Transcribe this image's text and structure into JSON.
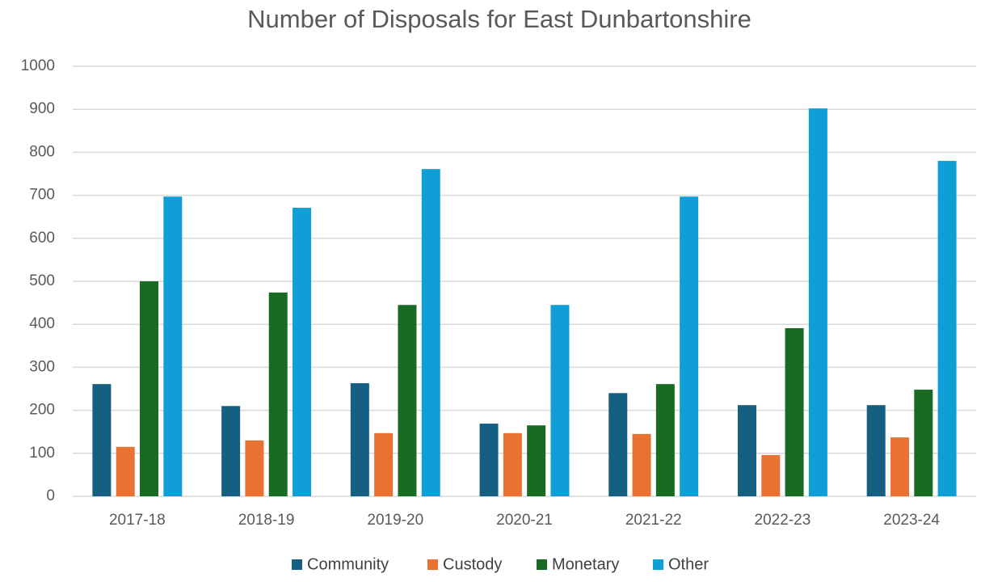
{
  "chart_data": {
    "type": "bar",
    "title": "Number of Disposals for East Dunbartonshire",
    "categories": [
      "2017-18",
      "2018-19",
      "2019-20",
      "2020-21",
      "2021-22",
      "2022-23",
      "2023-24"
    ],
    "series": [
      {
        "name": "Community",
        "color": "#156082",
        "values": [
          261,
          210,
          263,
          169,
          240,
          212,
          212
        ]
      },
      {
        "name": "Custody",
        "color": "#e97132",
        "values": [
          115,
          130,
          147,
          147,
          145,
          96,
          137
        ]
      },
      {
        "name": "Monetary",
        "color": "#196b24",
        "values": [
          500,
          474,
          445,
          165,
          261,
          391,
          248
        ]
      },
      {
        "name": "Other",
        "color": "#0f9ed5",
        "values": [
          697,
          671,
          761,
          445,
          697,
          902,
          780
        ]
      }
    ],
    "ylim": [
      0,
      1000
    ],
    "yticks": [
      0,
      100,
      200,
      300,
      400,
      500,
      600,
      700,
      800,
      900,
      1000
    ],
    "grid": true,
    "legend": "bottom"
  }
}
